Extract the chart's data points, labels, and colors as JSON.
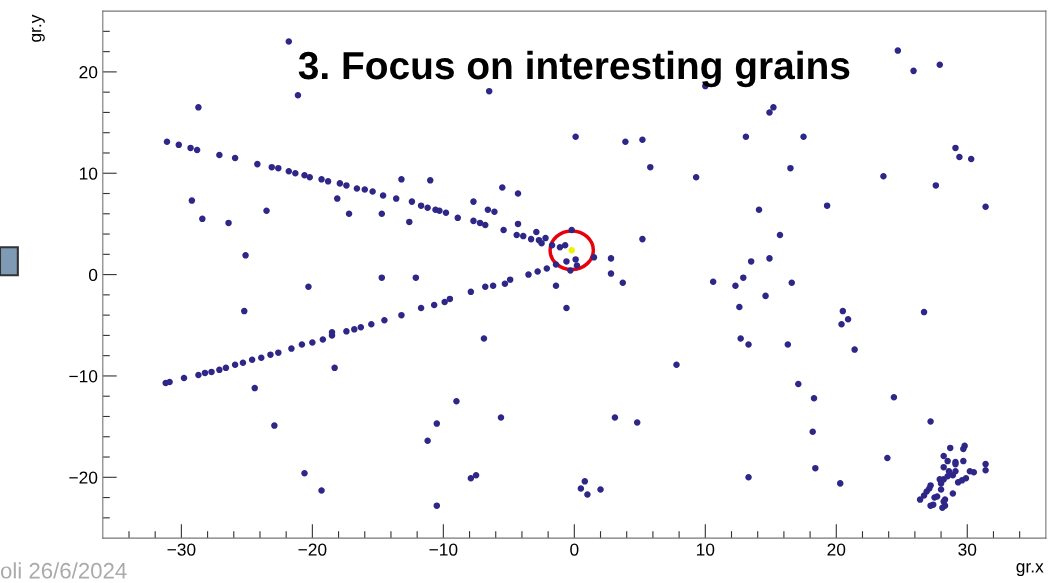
{
  "chart_data": {
    "type": "scatter",
    "title": "3. Focus on interesting grains",
    "xlabel": "gr.x",
    "ylabel": "gr.y",
    "annotations": [
      "oli 26/6/2024"
    ],
    "xlim": [
      -36,
      36
    ],
    "ylim": [
      -26,
      26
    ],
    "xticks": [
      {
        "value": -34,
        "label": null
      },
      {
        "value": -32,
        "label": null
      },
      {
        "value": -30,
        "label": "−30"
      },
      {
        "value": -28,
        "label": null
      },
      {
        "value": -26,
        "label": null
      },
      {
        "value": -24,
        "label": null
      },
      {
        "value": -22,
        "label": null
      },
      {
        "value": -20,
        "label": "−20"
      },
      {
        "value": -18,
        "label": null
      },
      {
        "value": -16,
        "label": null
      },
      {
        "value": -14,
        "label": null
      },
      {
        "value": -12,
        "label": null
      },
      {
        "value": -10,
        "label": "−10"
      },
      {
        "value": -8,
        "label": null
      },
      {
        "value": -6,
        "label": null
      },
      {
        "value": -4,
        "label": null
      },
      {
        "value": -2,
        "label": null
      },
      0,
      {
        "value": 2,
        "label": null
      },
      {
        "value": 4,
        "label": null
      },
      {
        "value": 6,
        "label": null
      },
      {
        "value": 8,
        "label": null
      },
      10,
      {
        "value": 12,
        "label": null
      },
      {
        "value": 14,
        "label": null
      },
      {
        "value": 16,
        "label": null
      },
      {
        "value": 18,
        "label": null
      },
      20,
      {
        "value": 22,
        "label": null
      },
      {
        "value": 24,
        "label": null
      },
      {
        "value": 26,
        "label": null
      },
      {
        "value": 28,
        "label": null
      },
      30,
      {
        "value": 32,
        "label": null
      },
      {
        "value": 34,
        "label": null
      }
    ],
    "yticks": [
      {
        "value": -24,
        "label": null
      },
      {
        "value": -22,
        "label": null
      },
      {
        "value": -20,
        "label": "−20"
      },
      {
        "value": -18,
        "label": null
      },
      {
        "value": -16,
        "label": null
      },
      {
        "value": -14,
        "label": null
      },
      {
        "value": -12,
        "label": null
      },
      {
        "value": -10,
        "label": "−10"
      },
      {
        "value": -8,
        "label": null
      },
      {
        "value": -6,
        "label": null
      },
      {
        "value": -4,
        "label": null
      },
      {
        "value": -2,
        "label": null
      },
      0,
      {
        "value": 2,
        "label": null
      },
      {
        "value": 4,
        "label": null
      },
      {
        "value": 6,
        "label": null
      },
      {
        "value": 8,
        "label": null
      },
      10,
      {
        "value": 12,
        "label": null
      },
      {
        "value": 14,
        "label": null
      },
      {
        "value": 16,
        "label": null
      },
      {
        "value": 18,
        "label": null
      },
      20,
      {
        "value": 22,
        "label": null
      },
      {
        "value": 24,
        "label": null
      }
    ],
    "grid": false,
    "marker": "circle",
    "series": [
      {
        "color": "#2e2787",
        "x": [
          -21.8,
          -28.7,
          -21.1,
          -6.5,
          0.1,
          -31.1,
          -30.2,
          -29.3,
          -28.8,
          -27.1,
          -25.9,
          -24.2,
          -23.1,
          -22.6,
          -21.8,
          -21.3,
          -20.6,
          -20.2,
          -19.3,
          -18.8,
          -17.9,
          -17.4,
          -16.6,
          -16.0,
          -15.4,
          -14.6,
          -13.6,
          -12.4,
          -11.7,
          -11.2,
          -10.6,
          -10.3,
          -9.8,
          -8.9,
          -7.7,
          -7.2,
          -6.8,
          -5.4,
          -4.4,
          -3.9,
          -3.3,
          -2.7,
          -2.5,
          -1.7,
          -1.1,
          -0.7,
          -13.2,
          -11.0,
          -5.5,
          -4.3,
          -7.7,
          -6.6,
          -6.1,
          -4.3,
          -2.9,
          -2.2,
          -0.2,
          -29.2,
          -28.4,
          -26.4,
          -23.5,
          -18.1,
          -17.2,
          -14.7,
          -12.6,
          -25.1,
          -14.7,
          -12.1,
          -20.3,
          -1.4,
          -2.1,
          -2.8,
          -3.5,
          -4.9,
          -5.3,
          -6.2,
          -6.8,
          -1.4,
          -0.6,
          -0.3,
          0.1,
          24.7,
          25.9,
          27.9,
          10.0,
          15.2,
          14.9,
          3.9,
          5.2,
          13.1,
          17.5,
          29.1,
          29.4,
          30.3,
          5.8,
          9.3,
          16.5,
          23.6,
          27.6,
          31.4,
          14.1,
          19.3,
          15.7,
          5.2,
          1.5,
          0.2,
          2.8,
          2.8,
          3.7,
          10.6,
          12.3,
          12.9,
          13.5,
          14.9,
          16.6,
          -25.2,
          -31.2,
          -30.9,
          -29.8,
          -28.7,
          -28.2,
          -27.7,
          -27.1,
          -26.6,
          -25.9,
          -25.3,
          -24.6,
          -23.9,
          -23.2,
          -22.6,
          -21.6,
          -20.8,
          -20.0,
          -19.2,
          -18.5,
          -18.5,
          -17.4,
          -16.8,
          -16.3,
          -15.5,
          -14.5,
          -13.2,
          -11.7,
          -10.7,
          -9.9,
          -9.5,
          -7.9,
          -0.6,
          -6.9,
          -18.3,
          -24.4,
          -9.0,
          -10.5,
          -5.6,
          -22.9,
          -11.2,
          -20.6,
          -19.3,
          -7.9,
          -7.5,
          -10.5,
          14.6,
          12.6,
          20.5,
          20.4,
          20.9,
          26.7,
          12.7,
          13.3,
          16.3,
          21.4,
          7.8,
          17.1,
          18.3,
          24.4,
          27.2,
          18.2,
          3.1,
          4.8,
          23.9,
          18.4,
          20.3,
          13.3,
          0.8,
          0.5,
          1.0,
          2.0,
          28.7,
          29.8,
          29.7,
          28.2,
          28.5,
          29.1,
          29.1,
          29.7,
          31.4,
          31.4,
          28.2,
          28.6,
          29.1,
          30.2,
          30.5,
          28.9,
          28.5,
          29.9,
          29.6,
          29.3,
          28.2,
          27.9,
          28.0,
          27.2,
          27.1,
          28.0,
          26.9,
          26.7,
          26.4,
          28.9,
          27.5,
          27.7,
          28.3,
          28.2,
          27.2,
          27.4,
          28.3,
          28.1
        ],
        "values": [
          23.0,
          16.5,
          17.7,
          18.1,
          13.6,
          13.1,
          12.8,
          12.5,
          12.3,
          11.8,
          11.5,
          10.9,
          10.6,
          10.5,
          10.2,
          10.0,
          9.8,
          9.6,
          9.4,
          9.2,
          9.0,
          8.8,
          8.5,
          8.4,
          8.2,
          7.8,
          7.5,
          7.2,
          6.8,
          6.6,
          6.4,
          6.3,
          6.1,
          5.6,
          5.3,
          5.1,
          4.9,
          4.4,
          3.9,
          3.8,
          3.5,
          3.4,
          3.1,
          2.9,
          2.7,
          2.9,
          9.4,
          9.3,
          8.6,
          8.0,
          7.2,
          6.4,
          6.2,
          5.0,
          4.2,
          3.6,
          4.4,
          7.3,
          5.5,
          5.1,
          6.3,
          7.5,
          6.0,
          6.0,
          5.2,
          1.9,
          -0.3,
          -0.3,
          -1.2,
          1.0,
          0.6,
          0.3,
          0.0,
          -0.5,
          -0.9,
          -1.1,
          -1.2,
          -1.1,
          1.3,
          0.4,
          1.5,
          22.1,
          20.1,
          20.7,
          18.6,
          16.5,
          16.0,
          13.1,
          13.3,
          13.6,
          13.6,
          12.5,
          11.6,
          11.4,
          10.6,
          9.6,
          10.5,
          9.7,
          8.8,
          6.7,
          6.4,
          6.8,
          3.9,
          3.5,
          1.7,
          0.9,
          1.6,
          0.1,
          -0.8,
          -0.7,
          -1.1,
          -0.3,
          1.3,
          1.6,
          -0.8,
          -3.6,
          -10.7,
          -10.6,
          -10.2,
          -9.9,
          -9.7,
          -9.6,
          -9.4,
          -9.2,
          -8.9,
          -8.7,
          -8.4,
          -8.2,
          -7.9,
          -7.7,
          -7.3,
          -6.9,
          -6.7,
          -6.4,
          -6.0,
          -5.7,
          -5.6,
          -5.4,
          -5.2,
          -4.9,
          -4.5,
          -4.0,
          -3.3,
          -3.0,
          -2.7,
          -2.4,
          -1.7,
          -3.3,
          -6.3,
          -9.2,
          -11.2,
          -12.5,
          -14.7,
          -14.1,
          -14.9,
          -16.4,
          -19.6,
          -21.3,
          -20.1,
          -19.8,
          -22.8,
          -2.1,
          -3.2,
          -3.6,
          -4.9,
          -4.4,
          -3.7,
          -6.3,
          -6.9,
          -6.9,
          -7.4,
          -8.9,
          -10.8,
          -12.2,
          -12.1,
          -14.5,
          -15.5,
          -14.1,
          -14.6,
          -18.1,
          -19.1,
          -20.6,
          -20.0,
          -20.4,
          -21.1,
          -21.7,
          -21.2,
          -17.1,
          -16.9,
          -17.2,
          -17.9,
          -18.4,
          -18.5,
          -18.7,
          -18.4,
          -18.7,
          -19.3,
          -19.0,
          -19.4,
          -19.4,
          -19.4,
          -19.5,
          -19.8,
          -19.9,
          -20.1,
          -20.3,
          -20.5,
          -20.2,
          -20.2,
          -20.6,
          -20.8,
          -21.1,
          -21.2,
          -21.4,
          -21.8,
          -22.2,
          -21.6,
          -22.0,
          -21.9,
          -22.2,
          -22.4,
          -22.8,
          -22.7,
          -22.8,
          -23.0
        ]
      },
      {
        "color": "#f0f000",
        "x": [
          -0.2
        ],
        "values": [
          2.4
        ]
      }
    ]
  }
}
